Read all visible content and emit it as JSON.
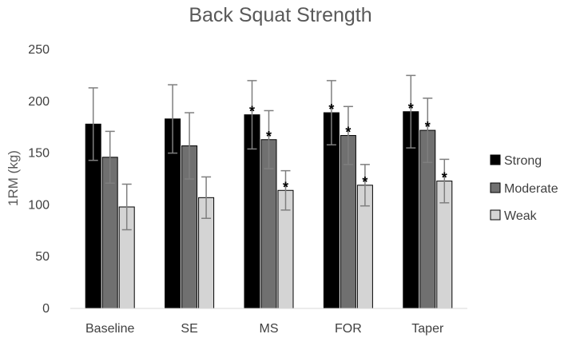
{
  "chart_data": {
    "type": "bar",
    "title": "Back Squat Strength",
    "xlabel": "",
    "ylabel": "1RM (kg)",
    "ylim": [
      0,
      250
    ],
    "yticks": [
      0,
      50,
      100,
      150,
      200,
      250
    ],
    "grid": false,
    "legend_position": "right",
    "categories": [
      "Baseline",
      "SE",
      "MS",
      "FOR",
      "Taper"
    ],
    "series": [
      {
        "name": "Strong",
        "color": "#000000",
        "values": [
          178,
          183,
          187,
          189,
          190
        ],
        "error": [
          35,
          33,
          33,
          31,
          35
        ],
        "significant": [
          false,
          false,
          true,
          true,
          true
        ]
      },
      {
        "name": "Moderate",
        "color": "#707070",
        "values": [
          146,
          157,
          163,
          167,
          172
        ],
        "error": [
          25,
          32,
          28,
          28,
          31
        ],
        "significant": [
          false,
          false,
          true,
          true,
          true
        ]
      },
      {
        "name": "Weak",
        "color": "#d4d4d4",
        "values": [
          98,
          107,
          114,
          119,
          123
        ],
        "error": [
          22,
          20,
          19,
          20,
          21
        ],
        "significant": [
          false,
          false,
          true,
          true,
          true
        ]
      }
    ],
    "significance_marker": "*"
  }
}
